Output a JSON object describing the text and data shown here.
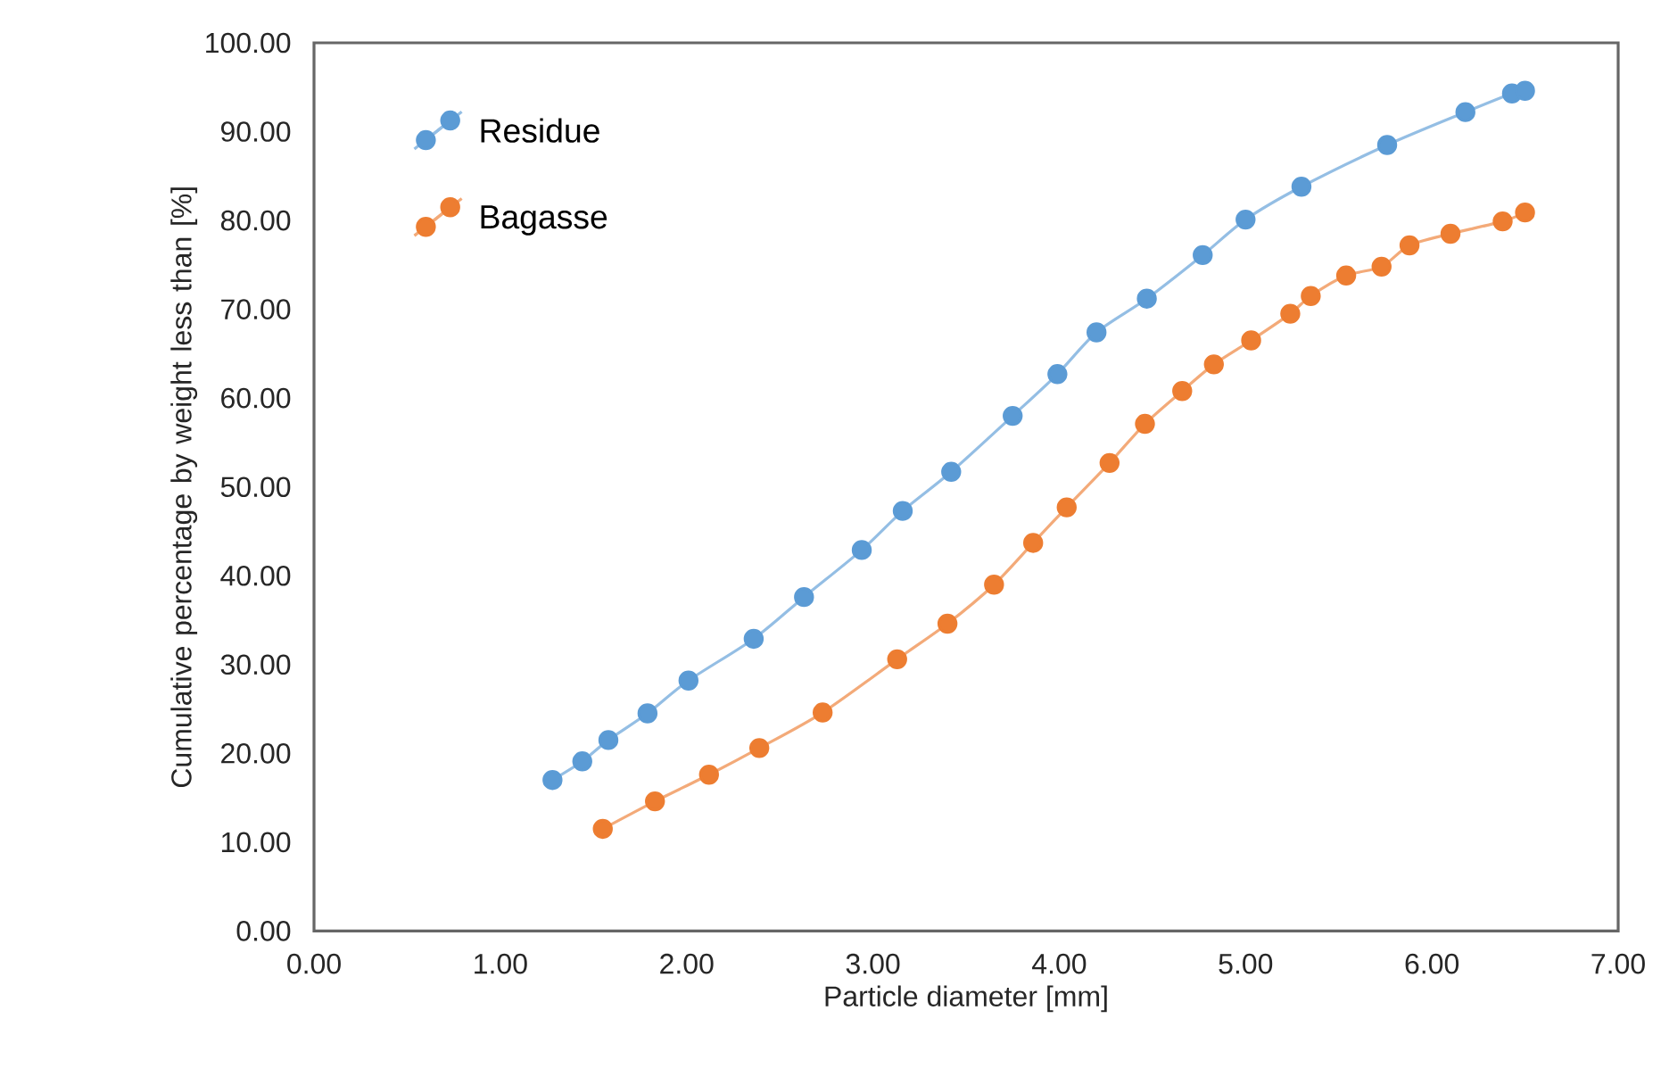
{
  "chart_data": {
    "type": "line",
    "xlabel": "Particle diameter [mm]",
    "ylabel": "Cumulative percentage by weight less than [%]",
    "xlim": [
      0,
      7
    ],
    "ylim": [
      0,
      100
    ],
    "xticks": [
      {
        "value": 0,
        "label": "0.00"
      },
      {
        "value": 1,
        "label": "1.00"
      },
      {
        "value": 2,
        "label": "2.00"
      },
      {
        "value": 3,
        "label": "3.00"
      },
      {
        "value": 4,
        "label": "4.00"
      },
      {
        "value": 5,
        "label": "5.00"
      },
      {
        "value": 6,
        "label": "6.00"
      },
      {
        "value": 7,
        "label": "7.00"
      }
    ],
    "yticks": [
      {
        "value": 0,
        "label": "0.00"
      },
      {
        "value": 10,
        "label": "10.00"
      },
      {
        "value": 20,
        "label": "20.00"
      },
      {
        "value": 30,
        "label": "30.00"
      },
      {
        "value": 40,
        "label": "40.00"
      },
      {
        "value": 50,
        "label": "50.00"
      },
      {
        "value": 60,
        "label": "60.00"
      },
      {
        "value": 70,
        "label": "70.00"
      },
      {
        "value": 80,
        "label": "80.00"
      },
      {
        "value": 90,
        "label": "90.00"
      },
      {
        "value": 100,
        "label": "100.00"
      }
    ],
    "legend": "top left",
    "marker": "circle",
    "grid": false,
    "series": [
      {
        "name": "Residue",
        "color": "#5b9bd5",
        "x": [
          1.28,
          1.44,
          1.58,
          1.79,
          2.01,
          2.36,
          2.63,
          2.94,
          3.16,
          3.42,
          3.75,
          3.99,
          4.2,
          4.47,
          4.77,
          5.0,
          5.3,
          5.76,
          6.18,
          6.43,
          6.5
        ],
        "values": [
          17.0,
          19.1,
          21.5,
          24.5,
          28.2,
          32.9,
          37.6,
          42.9,
          47.3,
          51.7,
          58.0,
          62.7,
          67.4,
          71.2,
          76.1,
          80.1,
          83.8,
          88.5,
          92.2,
          94.3,
          94.6
        ]
      },
      {
        "name": "Bagasse",
        "color": "#ed7d31",
        "x": [
          1.55,
          1.83,
          2.12,
          2.39,
          2.73,
          3.13,
          3.4,
          3.65,
          3.86,
          4.04,
          4.27,
          4.46,
          4.66,
          4.83,
          5.03,
          5.24,
          5.35,
          5.54,
          5.73,
          5.88,
          6.1,
          6.38,
          6.5
        ],
        "values": [
          11.5,
          14.6,
          17.6,
          20.6,
          24.6,
          30.6,
          34.6,
          39.0,
          43.7,
          47.7,
          52.7,
          57.1,
          60.8,
          63.8,
          66.5,
          69.5,
          71.5,
          73.8,
          74.8,
          77.2,
          78.5,
          79.9,
          80.9
        ]
      }
    ]
  }
}
